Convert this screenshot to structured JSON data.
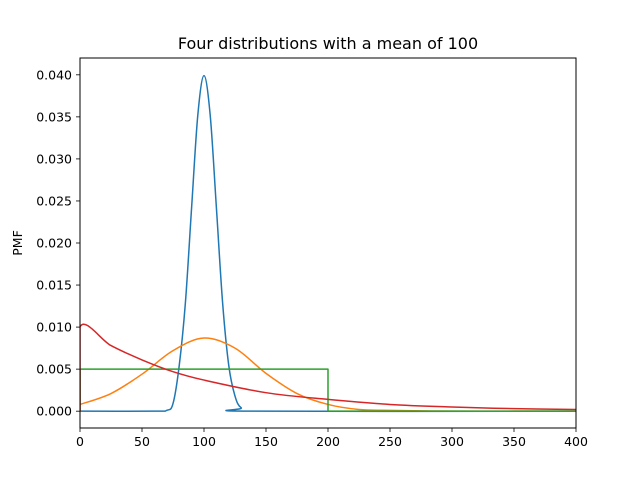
{
  "chart_data": {
    "type": "line",
    "title": "Four distributions with a mean of 100",
    "xlabel": "",
    "ylabel": "PMF",
    "xlim": [
      0,
      400
    ],
    "ylim": [
      -0.002,
      0.042
    ],
    "grid": false,
    "legend": "none",
    "x_ticks": [
      0,
      50,
      100,
      150,
      200,
      250,
      300,
      350,
      400
    ],
    "x_tick_labels": [
      "0",
      "50",
      "100",
      "150",
      "200",
      "250",
      "300",
      "350",
      "400"
    ],
    "y_ticks": [
      0.0,
      0.005,
      0.01,
      0.015,
      0.02,
      0.025,
      0.03,
      0.035,
      0.04
    ],
    "y_tick_labels": [
      "0.000",
      "0.005",
      "0.010",
      "0.015",
      "0.020",
      "0.025",
      "0.030",
      "0.035",
      "0.040"
    ],
    "series": [
      {
        "color": "#1f77b4",
        "x": [
          0,
          60,
          70,
          75,
          80,
          85,
          90,
          95,
          100,
          105,
          110,
          115,
          120,
          125,
          130,
          140,
          400
        ],
        "values": [
          0.0,
          0.0,
          0.0001,
          0.0009,
          0.0054,
          0.0129,
          0.0242,
          0.0352,
          0.0399,
          0.0352,
          0.0242,
          0.0129,
          0.0054,
          0.0018,
          0.0004,
          0.0,
          0.0
        ]
      },
      {
        "color": "#ff7f0e",
        "x": [
          0,
          25,
          50,
          75,
          100,
          125,
          150,
          175,
          200,
          225,
          250,
          300,
          350,
          400
        ],
        "values": [
          0.0008,
          0.0021,
          0.0044,
          0.0072,
          0.0087,
          0.0075,
          0.0045,
          0.0021,
          0.0008,
          0.0002,
          0.0001,
          0.0,
          0.0,
          0.0
        ]
      },
      {
        "color": "#2ca02c",
        "x": [
          0,
          0,
          200,
          200,
          400
        ],
        "values": [
          0.0,
          0.005,
          0.005,
          0.0,
          0.0
        ]
      },
      {
        "color": "#d62728",
        "x": [
          0,
          0,
          25,
          50,
          75,
          100,
          150,
          200,
          250,
          300,
          350,
          400
        ],
        "values": [
          0.0,
          0.01,
          0.0078,
          0.0061,
          0.0047,
          0.0037,
          0.0022,
          0.0014,
          0.0008,
          0.0005,
          0.0003,
          0.0002
        ]
      }
    ]
  }
}
